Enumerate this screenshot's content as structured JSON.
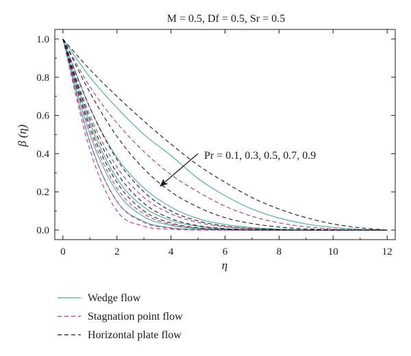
{
  "chart_data": {
    "type": "line",
    "title": "M = 0.5, Df = 0.5, Sr = 0.5",
    "xlabel": "η",
    "ylabel": "β (η)",
    "xlim": [
      -0.3,
      12.3
    ],
    "ylim": [
      -0.05,
      1.05
    ],
    "xticks": [
      0,
      2,
      4,
      6,
      8,
      10,
      12
    ],
    "yticks": [
      0.0,
      0.2,
      0.4,
      0.6,
      0.8,
      1.0
    ],
    "xtick_labels": [
      "0",
      "2",
      "4",
      "6",
      "8",
      "10",
      "12"
    ],
    "ytick_labels": [
      "0.0",
      "0.2",
      "0.4",
      "0.6",
      "0.8",
      "1.0"
    ],
    "grid": false,
    "legend_position": "bottom-left, below the plot",
    "annotation": {
      "text": "Pr = 0.1, 0.3, 0.5, 0.7, 0.9",
      "arrow_from": [
        5.0,
        0.4
      ],
      "arrow_to": [
        3.6,
        0.23
      ]
    },
    "line_styles": [
      {
        "name": "Wedge flow",
        "color": "#4aa89a",
        "dash": "solid"
      },
      {
        "name": "Stagnation point flow",
        "color": "#b5318e",
        "dash": "dashed"
      },
      {
        "name": "Horizontal plate flow",
        "color": "#1a1a1a",
        "dash": "dashed"
      }
    ],
    "x": [
      0,
      1,
      2,
      3,
      4,
      5,
      6,
      7,
      8,
      9,
      10,
      11,
      12
    ],
    "series": [
      {
        "name": "Wedge flow",
        "group": "wedge",
        "param": "Pr = 0.1",
        "values": [
          1.0,
          0.8,
          0.64,
          0.5,
          0.39,
          0.27,
          0.18,
          0.11,
          0.063,
          0.032,
          0.014,
          0.004,
          0.0
        ]
      },
      {
        "name": "Wedge flow",
        "group": "wedge",
        "param": "Pr = 0.3",
        "values": [
          1.0,
          0.64,
          0.38,
          0.22,
          0.12,
          0.06,
          0.029,
          0.013,
          0.005,
          0.002,
          0.0,
          0.0,
          0.0
        ]
      },
      {
        "name": "Wedge flow",
        "group": "wedge",
        "param": "Pr = 0.5",
        "values": [
          1.0,
          0.56,
          0.27,
          0.12,
          0.05,
          0.02,
          0.007,
          0.002,
          0.0,
          0.0,
          0.0,
          0.0,
          0.0
        ]
      },
      {
        "name": "Wedge flow",
        "group": "wedge",
        "param": "Pr = 0.7",
        "values": [
          1.0,
          0.5,
          0.2,
          0.07,
          0.025,
          0.007,
          0.002,
          0.0,
          0.0,
          0.0,
          0.0,
          0.0,
          0.0
        ]
      },
      {
        "name": "Wedge flow",
        "group": "wedge",
        "param": "Pr = 0.9",
        "values": [
          1.0,
          0.46,
          0.15,
          0.045,
          0.012,
          0.003,
          0.0,
          0.0,
          0.0,
          0.0,
          0.0,
          0.0,
          0.0
        ]
      },
      {
        "name": "Stagnation point flow",
        "group": "stagnation",
        "param": "Pr = 0.1",
        "values": [
          1.0,
          0.75,
          0.56,
          0.41,
          0.29,
          0.2,
          0.125,
          0.072,
          0.038,
          0.017,
          0.006,
          0.002,
          0.0
        ]
      },
      {
        "name": "Stagnation point flow",
        "group": "stagnation",
        "param": "Pr = 0.3",
        "values": [
          1.0,
          0.6,
          0.33,
          0.17,
          0.085,
          0.04,
          0.017,
          0.007,
          0.002,
          0.0,
          0.0,
          0.0,
          0.0
        ]
      },
      {
        "name": "Stagnation point flow",
        "group": "stagnation",
        "param": "Pr = 0.5",
        "values": [
          1.0,
          0.52,
          0.22,
          0.085,
          0.03,
          0.01,
          0.003,
          0.0,
          0.0,
          0.0,
          0.0,
          0.0,
          0.0
        ]
      },
      {
        "name": "Stagnation point flow",
        "group": "stagnation",
        "param": "Pr = 0.7",
        "values": [
          1.0,
          0.46,
          0.15,
          0.04,
          0.01,
          0.002,
          0.0,
          0.0,
          0.0,
          0.0,
          0.0,
          0.0,
          0.0
        ]
      },
      {
        "name": "Stagnation point flow",
        "group": "stagnation",
        "param": "Pr = 0.9",
        "values": [
          1.0,
          0.42,
          0.1,
          0.02,
          0.004,
          0.0,
          0.0,
          0.0,
          0.0,
          0.0,
          0.0,
          0.0,
          0.0
        ]
      },
      {
        "name": "Horizontal plate flow",
        "group": "plate",
        "param": "Pr = 0.1",
        "values": [
          1.0,
          0.84,
          0.7,
          0.57,
          0.45,
          0.34,
          0.25,
          0.17,
          0.11,
          0.065,
          0.032,
          0.012,
          0.0
        ]
      },
      {
        "name": "Horizontal plate flow",
        "group": "plate",
        "param": "Pr = 0.3",
        "values": [
          1.0,
          0.72,
          0.49,
          0.32,
          0.2,
          0.12,
          0.065,
          0.034,
          0.016,
          0.006,
          0.002,
          0.0,
          0.0
        ]
      },
      {
        "name": "Horizontal plate flow",
        "group": "plate",
        "param": "Pr = 0.5",
        "values": [
          1.0,
          0.64,
          0.37,
          0.2,
          0.1,
          0.048,
          0.021,
          0.008,
          0.003,
          0.0,
          0.0,
          0.0,
          0.0
        ]
      },
      {
        "name": "Horizontal plate flow",
        "group": "plate",
        "param": "Pr = 0.7",
        "values": [
          1.0,
          0.58,
          0.3,
          0.14,
          0.06,
          0.023,
          0.008,
          0.002,
          0.0,
          0.0,
          0.0,
          0.0,
          0.0
        ]
      },
      {
        "name": "Horizontal plate flow",
        "group": "plate",
        "param": "Pr = 0.9",
        "values": [
          1.0,
          0.54,
          0.25,
          0.1,
          0.037,
          0.012,
          0.003,
          0.0,
          0.0,
          0.0,
          0.0,
          0.0,
          0.0
        ]
      }
    ]
  }
}
